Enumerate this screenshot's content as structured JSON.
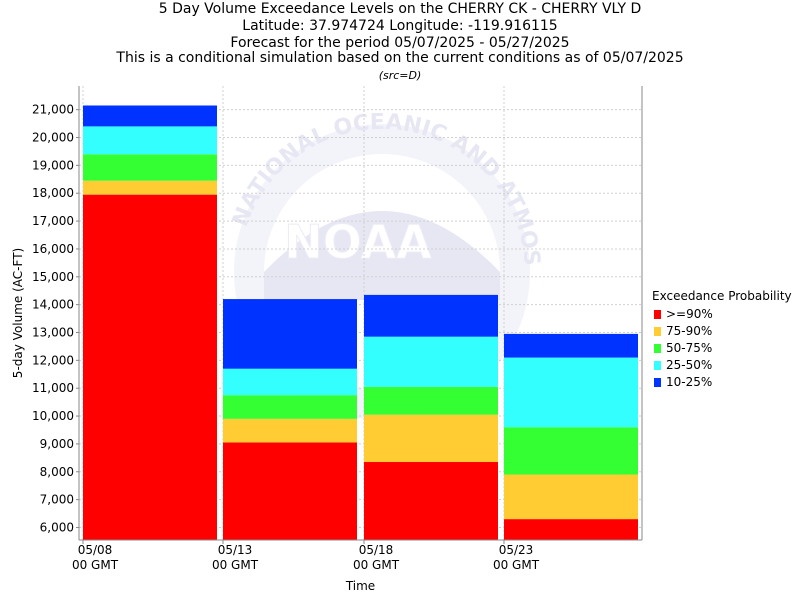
{
  "titles": [
    "5 Day Volume Exceedance Levels on the CHERRY CK - CHERRY VLY D",
    "Latitude: 37.974724 Longitude: -119.916115",
    "Forecast for the period 05/07/2025 - 05/27/2025",
    "This is a conditional simulation based on the current conditions as of 05/07/2025"
  ],
  "source_note": "(src=D)",
  "watermark": {
    "logo_text": "NOAA",
    "ring_text": "NATIONAL OCEANIC AND ATMOSPHERIC ADMINISTRATION"
  },
  "legend": {
    "title": "Exceedance Probability",
    "items": [
      {
        "label": ">=90%",
        "color": "#ff0000"
      },
      {
        "label": "75-90%",
        "color": "#ffcc33"
      },
      {
        "label": "50-75%",
        "color": "#33ff33"
      },
      {
        "label": "25-50%",
        "color": "#33ffff"
      },
      {
        "label": "10-25%",
        "color": "#0033ff"
      }
    ]
  },
  "chart_data": {
    "type": "bar",
    "stacked": true,
    "xlabel": "Time",
    "ylabel": "5-day Volume (AC-FT)",
    "ylim": [
      5550,
      21850
    ],
    "yticks": [
      6000,
      7000,
      8000,
      9000,
      10000,
      11000,
      12000,
      13000,
      14000,
      15000,
      16000,
      17000,
      18000,
      19000,
      20000,
      21000
    ],
    "ytick_labels": [
      "6,000",
      "7,000",
      "8,000",
      "9,000",
      "10,000",
      "11,000",
      "12,000",
      "13,000",
      "14,000",
      "15,000",
      "16,000",
      "17,000",
      "18,000",
      "19,000",
      "20,000",
      "21,000"
    ],
    "xticks": [
      {
        "line1": "05/08",
        "line2": "00 GMT"
      },
      {
        "line1": "05/13",
        "line2": "00 GMT"
      },
      {
        "line1": "05/18",
        "line2": "00 GMT"
      },
      {
        "line1": "05/23",
        "line2": "00 GMT"
      }
    ],
    "grid": true,
    "legend_position": "right",
    "bars": [
      {
        "period": "05/08 - 05/13",
        "levels": [
          17950,
          18450,
          19400,
          20400,
          21150
        ]
      },
      {
        "period": "05/13 - 05/18",
        "levels": [
          9050,
          9900,
          10750,
          11700,
          14200
        ]
      },
      {
        "period": "05/18 - 05/23",
        "levels": [
          8350,
          10050,
          11050,
          12850,
          14350
        ]
      },
      {
        "period": "05/23 - 05/28",
        "levels": [
          6300,
          7900,
          9600,
          12100,
          12950
        ]
      }
    ],
    "series": [
      {
        "name": ">=90%",
        "color": "#ff0000"
      },
      {
        "name": "75-90%",
        "color": "#ffcc33"
      },
      {
        "name": "50-75%",
        "color": "#33ff33"
      },
      {
        "name": "25-50%",
        "color": "#33ffff"
      },
      {
        "name": "10-25%",
        "color": "#0033ff"
      }
    ]
  }
}
